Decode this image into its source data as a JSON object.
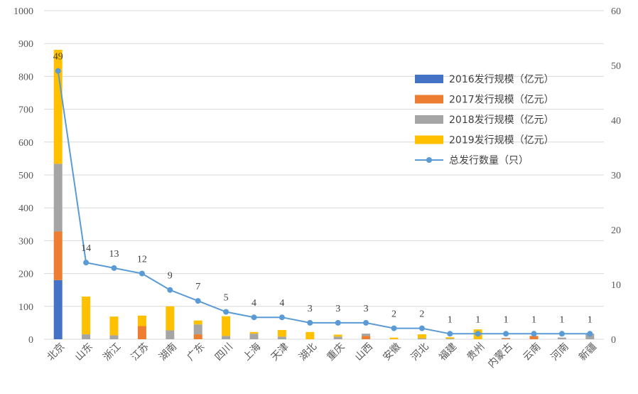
{
  "chart_data": {
    "type": "bar",
    "stacked": true,
    "categories": [
      "北京",
      "山东",
      "浙江",
      "江苏",
      "湖南",
      "广东",
      "四川",
      "上海",
      "天津",
      "湖北",
      "重庆",
      "山西",
      "安徽",
      "河北",
      "福建",
      "贵州",
      "内蒙古",
      "云南",
      "河南",
      "新疆"
    ],
    "series": [
      {
        "name": "2016发行规模（亿元）",
        "color": "#4472C4",
        "axis": "left",
        "values": [
          180,
          0,
          0,
          0,
          0,
          0,
          0,
          0,
          0,
          0,
          0,
          0,
          0,
          0,
          0,
          0,
          0,
          0,
          0,
          0
        ]
      },
      {
        "name": "2017发行规模（亿元）",
        "color": "#ED7D31",
        "axis": "left",
        "values": [
          148,
          0,
          0,
          40,
          0,
          15,
          0,
          0,
          0,
          0,
          0,
          10,
          0,
          0,
          0,
          0,
          2,
          10,
          0,
          0
        ]
      },
      {
        "name": "2018发行规模（亿元）",
        "color": "#A5A5A5",
        "axis": "left",
        "values": [
          206,
          15,
          12,
          0,
          27,
          30,
          10,
          17,
          8,
          0,
          8,
          7,
          0,
          3,
          2,
          0,
          2,
          0,
          5,
          17
        ]
      },
      {
        "name": "2019发行规模（亿元）",
        "color": "#FFC000",
        "axis": "left",
        "values": [
          347,
          115,
          57,
          32,
          73,
          12,
          60,
          5,
          20,
          22,
          6,
          0,
          5,
          12,
          4,
          30,
          0,
          0,
          0,
          0
        ]
      },
      {
        "name": "总发行数量（只）",
        "color": "#5B9BD5",
        "axis": "right",
        "type": "line",
        "values": [
          49,
          14,
          13,
          12,
          9,
          7,
          5,
          4,
          4,
          3,
          3,
          3,
          2,
          2,
          1,
          1,
          1,
          1,
          1,
          1
        ]
      }
    ],
    "y_left": {
      "min": 0,
      "max": 1000,
      "ticks": [
        "0",
        "100",
        "200",
        "300",
        "400",
        "500",
        "600",
        "700",
        "800",
        "900",
        "1000"
      ]
    },
    "y_right": {
      "min": 0,
      "max": 60,
      "ticks": [
        "0",
        "10",
        "20",
        "30",
        "40",
        "50",
        "60"
      ]
    },
    "grid": true,
    "legend_position": "right",
    "title": "",
    "xlabel": "",
    "ylabel": ""
  }
}
